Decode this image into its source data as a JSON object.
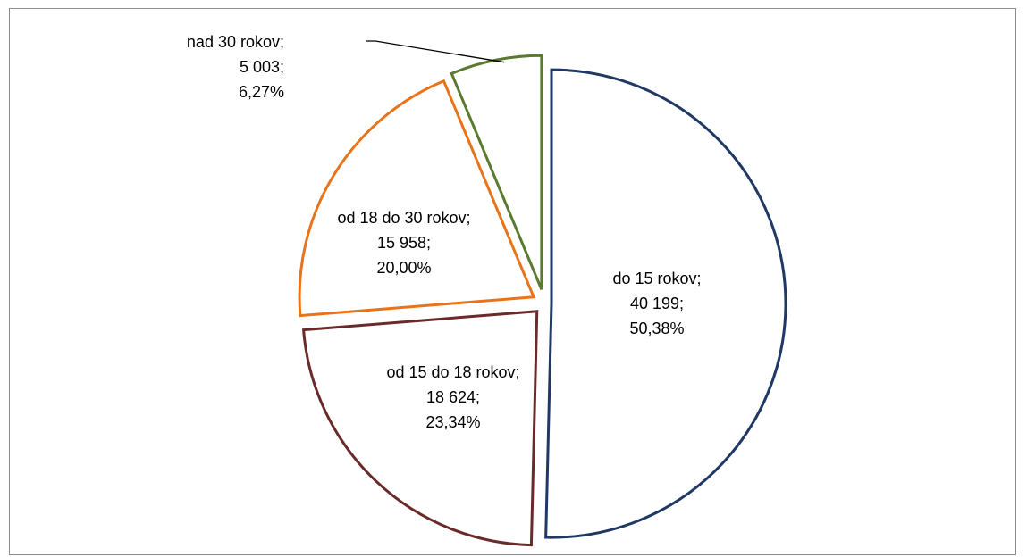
{
  "chart_data": {
    "type": "pie",
    "title": "",
    "labels": [
      "do 15 rokov",
      "od 15 do 18 rokov",
      "od 18 do 30 rokov",
      "nad 30 rokov"
    ],
    "values": [
      40199,
      18624,
      15958,
      5003
    ],
    "percentages": [
      "50,38%",
      "23,34%",
      "20,00%",
      "6,27%"
    ],
    "data_labels": [
      [
        "do 15 rokov;",
        "40 199;",
        "50,38%"
      ],
      [
        "od 15 do 18 rokov;",
        "18 624;",
        "23,34%"
      ],
      [
        "od 18 do 30 rokov;",
        "15 958;",
        "20,00%"
      ],
      [
        "nad 30 rokov;",
        "5 003;",
        "6,27%"
      ]
    ],
    "colors": [
      "#1f3864",
      "#6b2a2a",
      "#e8731a",
      "#5a7a30"
    ],
    "fill": "#ffffff",
    "exploded": true,
    "legend": "none"
  }
}
